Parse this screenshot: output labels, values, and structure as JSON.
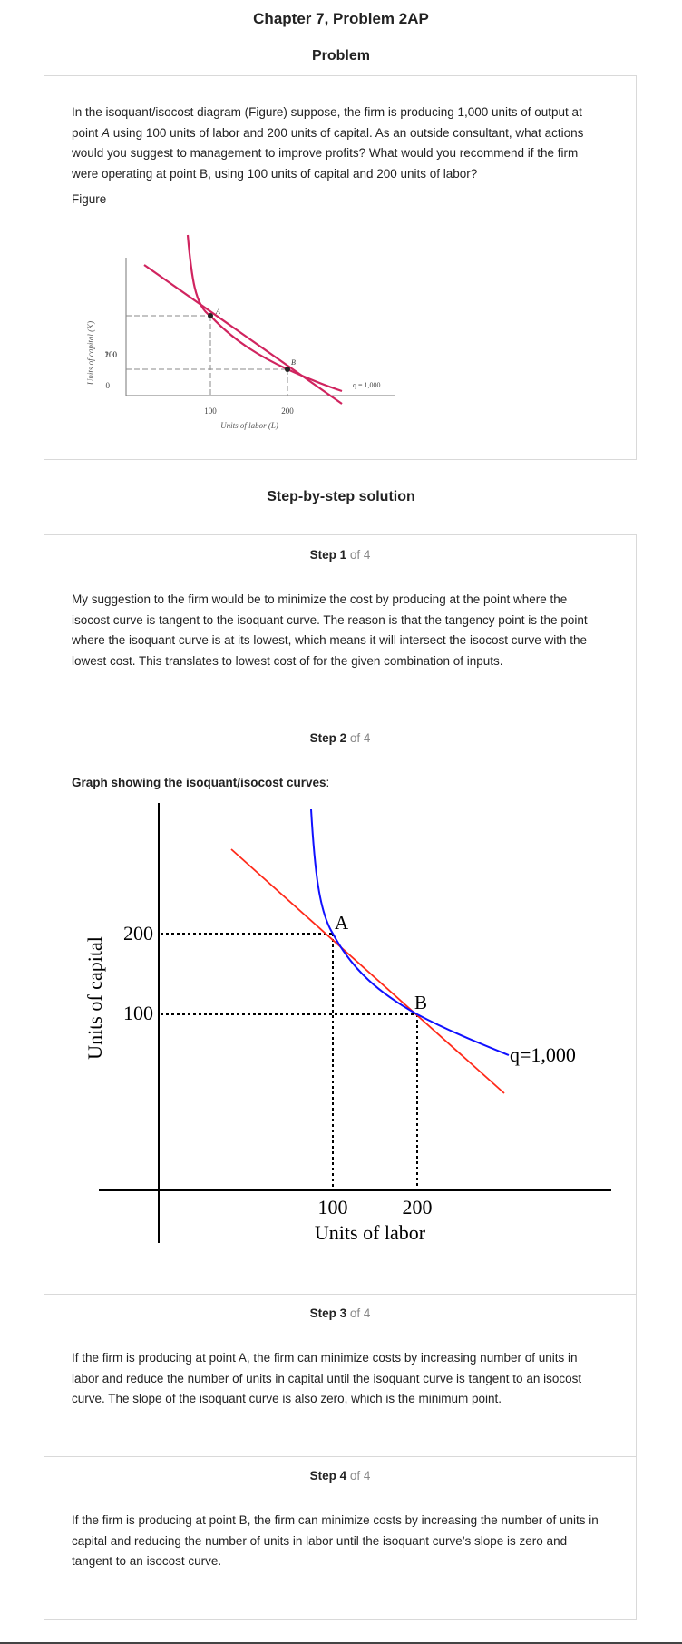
{
  "page_title": "Chapter 7, Problem 2AP",
  "problem_heading": "Problem",
  "problem": {
    "intro": "In the isoquant/isocost diagram (Figure) suppose, the firm is producing 1,000 units of output at point ",
    "point_a": "A",
    "rest": " using 100 units of labor and 200 units of capital. As an outside consultant, what actions would you suggest to management to improve profits? What would you recommend if the firm were operating at point B, using 100 units of capital and 200 units of labor?",
    "figure_label": "Figure"
  },
  "figure1": {
    "y_axis_label": "Units of capital (K)",
    "x_axis_label": "Units of labor (L)",
    "y_ticks": [
      "200",
      "100",
      "0"
    ],
    "x_ticks": [
      "100",
      "200"
    ],
    "point_a": "A",
    "point_b": "B",
    "curve_label": "q = 1,000",
    "colors": {
      "curves": "#d0245f",
      "guides": "#888888",
      "axes": "#777777"
    }
  },
  "solution_heading": "Step-by-step solution",
  "steps": [
    {
      "label": "Step 1",
      "of": " of 4",
      "text": "My suggestion to the firm would be to minimize the cost by producing at the point where the isocost curve is tangent to the isoquant curve. The reason is that the tangency point is the point where the isoquant curve is at its lowest, which means it will intersect the isocost curve with the lowest cost. This translates to lowest cost of for the given combination of inputs."
    },
    {
      "label": "Step 2",
      "of": " of 4",
      "graph_caption": "Graph showing the isoquant/isocost curves",
      "graph_caption_suffix": ":"
    },
    {
      "label": "Step 3",
      "of": " of 4",
      "text": "If the firm is producing at point A, the firm can minimize costs by increasing number of units in labor and reduce the number of units in capital until the isoquant curve is tangent to an isocost curve. The slope of the isoquant curve is also zero, which is the minimum point."
    },
    {
      "label": "Step 4",
      "of": " of 4",
      "text": "If the firm is producing at point B, the firm can minimize costs by increasing the number of units in capital and reducing the number of units in labor until the isoquant curve’s slope is zero and tangent to an isocost curve."
    }
  ],
  "figure2": {
    "y_axis_label": "Units of capital",
    "x_axis_label": "Units of labor",
    "y_ticks": [
      "200",
      "100"
    ],
    "x_ticks": [
      "100",
      "200"
    ],
    "point_a": "A",
    "point_b": "B",
    "curve_label": "q=1,000",
    "colors": {
      "isoquant": "#1010ff",
      "isocost": "#ff2a1a",
      "axes": "#000000"
    }
  }
}
